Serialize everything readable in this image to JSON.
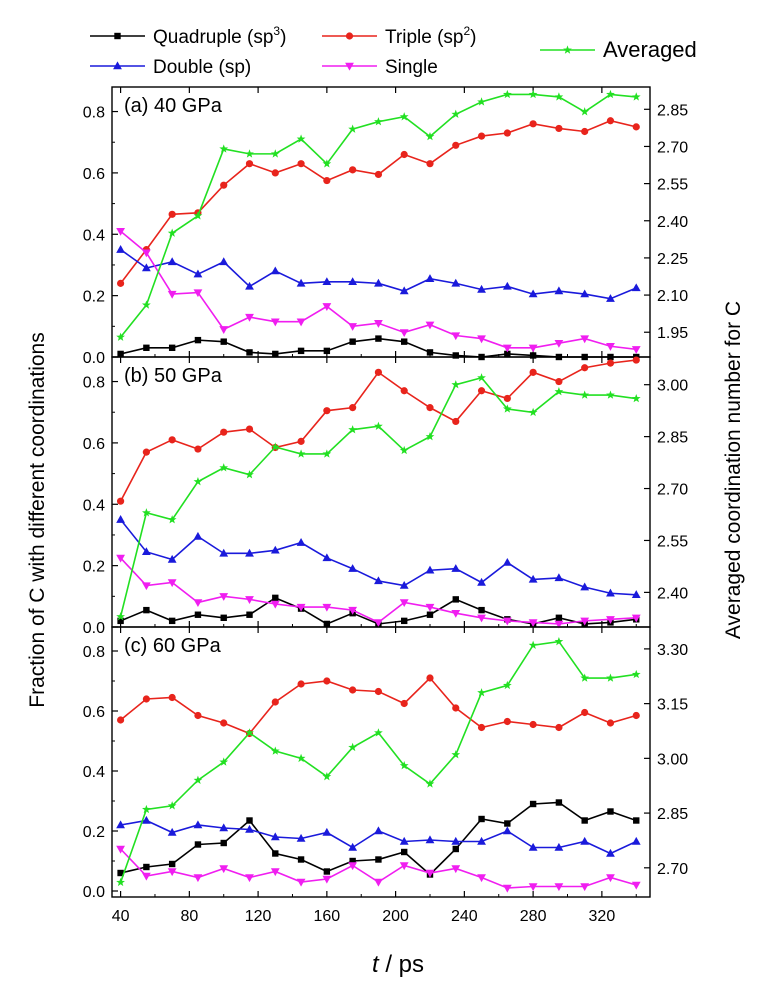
{
  "chart_data": {
    "type": "line",
    "x_label": "t / ps",
    "x_label_italic": "t",
    "x_label_rest": " / ps",
    "x_ticks": [
      40,
      80,
      120,
      160,
      200,
      240,
      280,
      320
    ],
    "xlim": [
      35,
      348
    ],
    "y_label_left": "Fraction of C with different coordinations",
    "y_label_right": "Averaged coordination number for C",
    "x": [
      40,
      55,
      70,
      85,
      100,
      115,
      130,
      145,
      160,
      175,
      190,
      205,
      220,
      235,
      250,
      265,
      280,
      295,
      310,
      325,
      340
    ],
    "legend": [
      {
        "key": "quad",
        "base": "Quadruple (sp",
        "sup": "3",
        "tail": ")",
        "color": "#000000",
        "marker": "square"
      },
      {
        "key": "triple",
        "base": "Triple (sp",
        "sup": "2",
        "tail": ")",
        "color": "#e8241c",
        "marker": "circle"
      },
      {
        "key": "double",
        "base": "Double (sp)",
        "sup": "",
        "tail": "",
        "color": "#1a1adb",
        "marker": "triangle-up"
      },
      {
        "key": "single",
        "base": "Single",
        "sup": "",
        "tail": "",
        "color": "#f01ef0",
        "marker": "triangle-down"
      },
      {
        "key": "avg",
        "base": "Averaged",
        "sup": "",
        "tail": "",
        "color": "#22e022",
        "marker": "star"
      }
    ],
    "panels": [
      {
        "label": "(a) 40 GPa",
        "ylim": [
          0,
          0.88
        ],
        "y_ticks": [
          "0.0",
          "0.2",
          "0.4",
          "0.6",
          "0.8"
        ],
        "y2lim": [
          1.85,
          2.94
        ],
        "y2_ticks": [
          "1.95",
          "2.10",
          "2.25",
          "2.40",
          "2.55",
          "2.70",
          "2.85"
        ],
        "series": {
          "quad": [
            0.01,
            0.03,
            0.03,
            0.055,
            0.05,
            0.015,
            0.01,
            0.02,
            0.02,
            0.05,
            0.06,
            0.05,
            0.015,
            0.005,
            0.0,
            0.01,
            0.005,
            0.0,
            0.0,
            0.0,
            0.0
          ],
          "triple": [
            0.24,
            0.35,
            0.465,
            0.47,
            0.56,
            0.63,
            0.6,
            0.63,
            0.575,
            0.61,
            0.595,
            0.66,
            0.63,
            0.69,
            0.72,
            0.73,
            0.76,
            0.745,
            0.735,
            0.77,
            0.75
          ],
          "double": [
            0.35,
            0.29,
            0.31,
            0.27,
            0.31,
            0.23,
            0.28,
            0.24,
            0.245,
            0.245,
            0.24,
            0.215,
            0.255,
            0.24,
            0.22,
            0.23,
            0.205,
            0.215,
            0.205,
            0.19,
            0.225
          ],
          "single": [
            0.41,
            0.34,
            0.205,
            0.21,
            0.09,
            0.13,
            0.115,
            0.115,
            0.165,
            0.1,
            0.11,
            0.08,
            0.105,
            0.07,
            0.06,
            0.03,
            0.03,
            0.045,
            0.06,
            0.035,
            0.025
          ],
          "avg": [
            1.93,
            2.06,
            2.35,
            2.42,
            2.69,
            2.67,
            2.67,
            2.73,
            2.63,
            2.77,
            2.8,
            2.82,
            2.74,
            2.83,
            2.88,
            2.91,
            2.91,
            2.9,
            2.84,
            2.91,
            2.9
          ]
        }
      },
      {
        "label": "(b) 50 GPa",
        "ylim": [
          0,
          0.88
        ],
        "y_ticks": [
          "0.0",
          "0.2",
          "0.4",
          "0.6",
          "0.8"
        ],
        "y2lim": [
          2.3,
          3.08
        ],
        "y2_ticks": [
          "2.40",
          "2.55",
          "2.70",
          "2.85",
          "3.00"
        ],
        "series": {
          "quad": [
            0.02,
            0.055,
            0.02,
            0.04,
            0.03,
            0.04,
            0.095,
            0.06,
            0.01,
            0.045,
            0.01,
            0.02,
            0.04,
            0.09,
            0.055,
            0.025,
            0.01,
            0.03,
            0.01,
            0.015,
            0.025
          ],
          "triple": [
            0.41,
            0.57,
            0.61,
            0.58,
            0.635,
            0.645,
            0.585,
            0.605,
            0.705,
            0.715,
            0.83,
            0.77,
            0.715,
            0.67,
            0.77,
            0.745,
            0.83,
            0.8,
            0.845,
            0.86,
            0.87
          ],
          "double": [
            0.35,
            0.245,
            0.22,
            0.295,
            0.24,
            0.24,
            0.25,
            0.275,
            0.225,
            0.19,
            0.15,
            0.135,
            0.185,
            0.19,
            0.145,
            0.21,
            0.155,
            0.16,
            0.13,
            0.11,
            0.105
          ],
          "single": [
            0.225,
            0.135,
            0.145,
            0.08,
            0.1,
            0.09,
            0.075,
            0.065,
            0.065,
            0.055,
            0.015,
            0.08,
            0.065,
            0.045,
            0.03,
            0.02,
            0.015,
            0.01,
            0.02,
            0.025,
            0.03
          ],
          "avg": [
            2.33,
            2.63,
            2.61,
            2.72,
            2.76,
            2.74,
            2.82,
            2.8,
            2.8,
            2.87,
            2.88,
            2.81,
            2.85,
            3.0,
            3.02,
            2.93,
            2.92,
            2.98,
            2.97,
            2.97,
            2.96
          ]
        }
      },
      {
        "label": "(c) 60 GPa",
        "ylim": [
          -0.02,
          0.88
        ],
        "y_ticks": [
          "0.0",
          "0.2",
          "0.4",
          "0.6",
          "0.8"
        ],
        "y2lim": [
          2.62,
          3.36
        ],
        "y2_ticks": [
          "2.70",
          "2.85",
          "3.00",
          "3.15",
          "3.30"
        ],
        "series": {
          "quad": [
            0.06,
            0.08,
            0.09,
            0.155,
            0.16,
            0.235,
            0.125,
            0.105,
            0.065,
            0.1,
            0.105,
            0.13,
            0.055,
            0.14,
            0.24,
            0.225,
            0.29,
            0.295,
            0.235,
            0.265,
            0.235
          ],
          "triple": [
            0.57,
            0.64,
            0.645,
            0.585,
            0.56,
            0.525,
            0.63,
            0.69,
            0.7,
            0.67,
            0.665,
            0.625,
            0.71,
            0.61,
            0.545,
            0.565,
            0.555,
            0.545,
            0.595,
            0.56,
            0.585
          ],
          "double": [
            0.22,
            0.235,
            0.195,
            0.22,
            0.21,
            0.205,
            0.18,
            0.175,
            0.195,
            0.145,
            0.2,
            0.165,
            0.17,
            0.165,
            0.165,
            0.2,
            0.145,
            0.145,
            0.165,
            0.125,
            0.165
          ],
          "single": [
            0.14,
            0.05,
            0.065,
            0.045,
            0.075,
            0.045,
            0.065,
            0.03,
            0.04,
            0.085,
            0.03,
            0.085,
            0.06,
            0.075,
            0.045,
            0.01,
            0.015,
            0.015,
            0.015,
            0.045,
            0.02
          ],
          "avg": [
            2.66,
            2.86,
            2.87,
            2.94,
            2.99,
            3.07,
            3.02,
            3.0,
            2.95,
            3.03,
            3.07,
            2.98,
            2.93,
            3.01,
            3.18,
            3.2,
            3.31,
            3.32,
            3.22,
            3.22,
            3.23
          ]
        }
      }
    ]
  }
}
